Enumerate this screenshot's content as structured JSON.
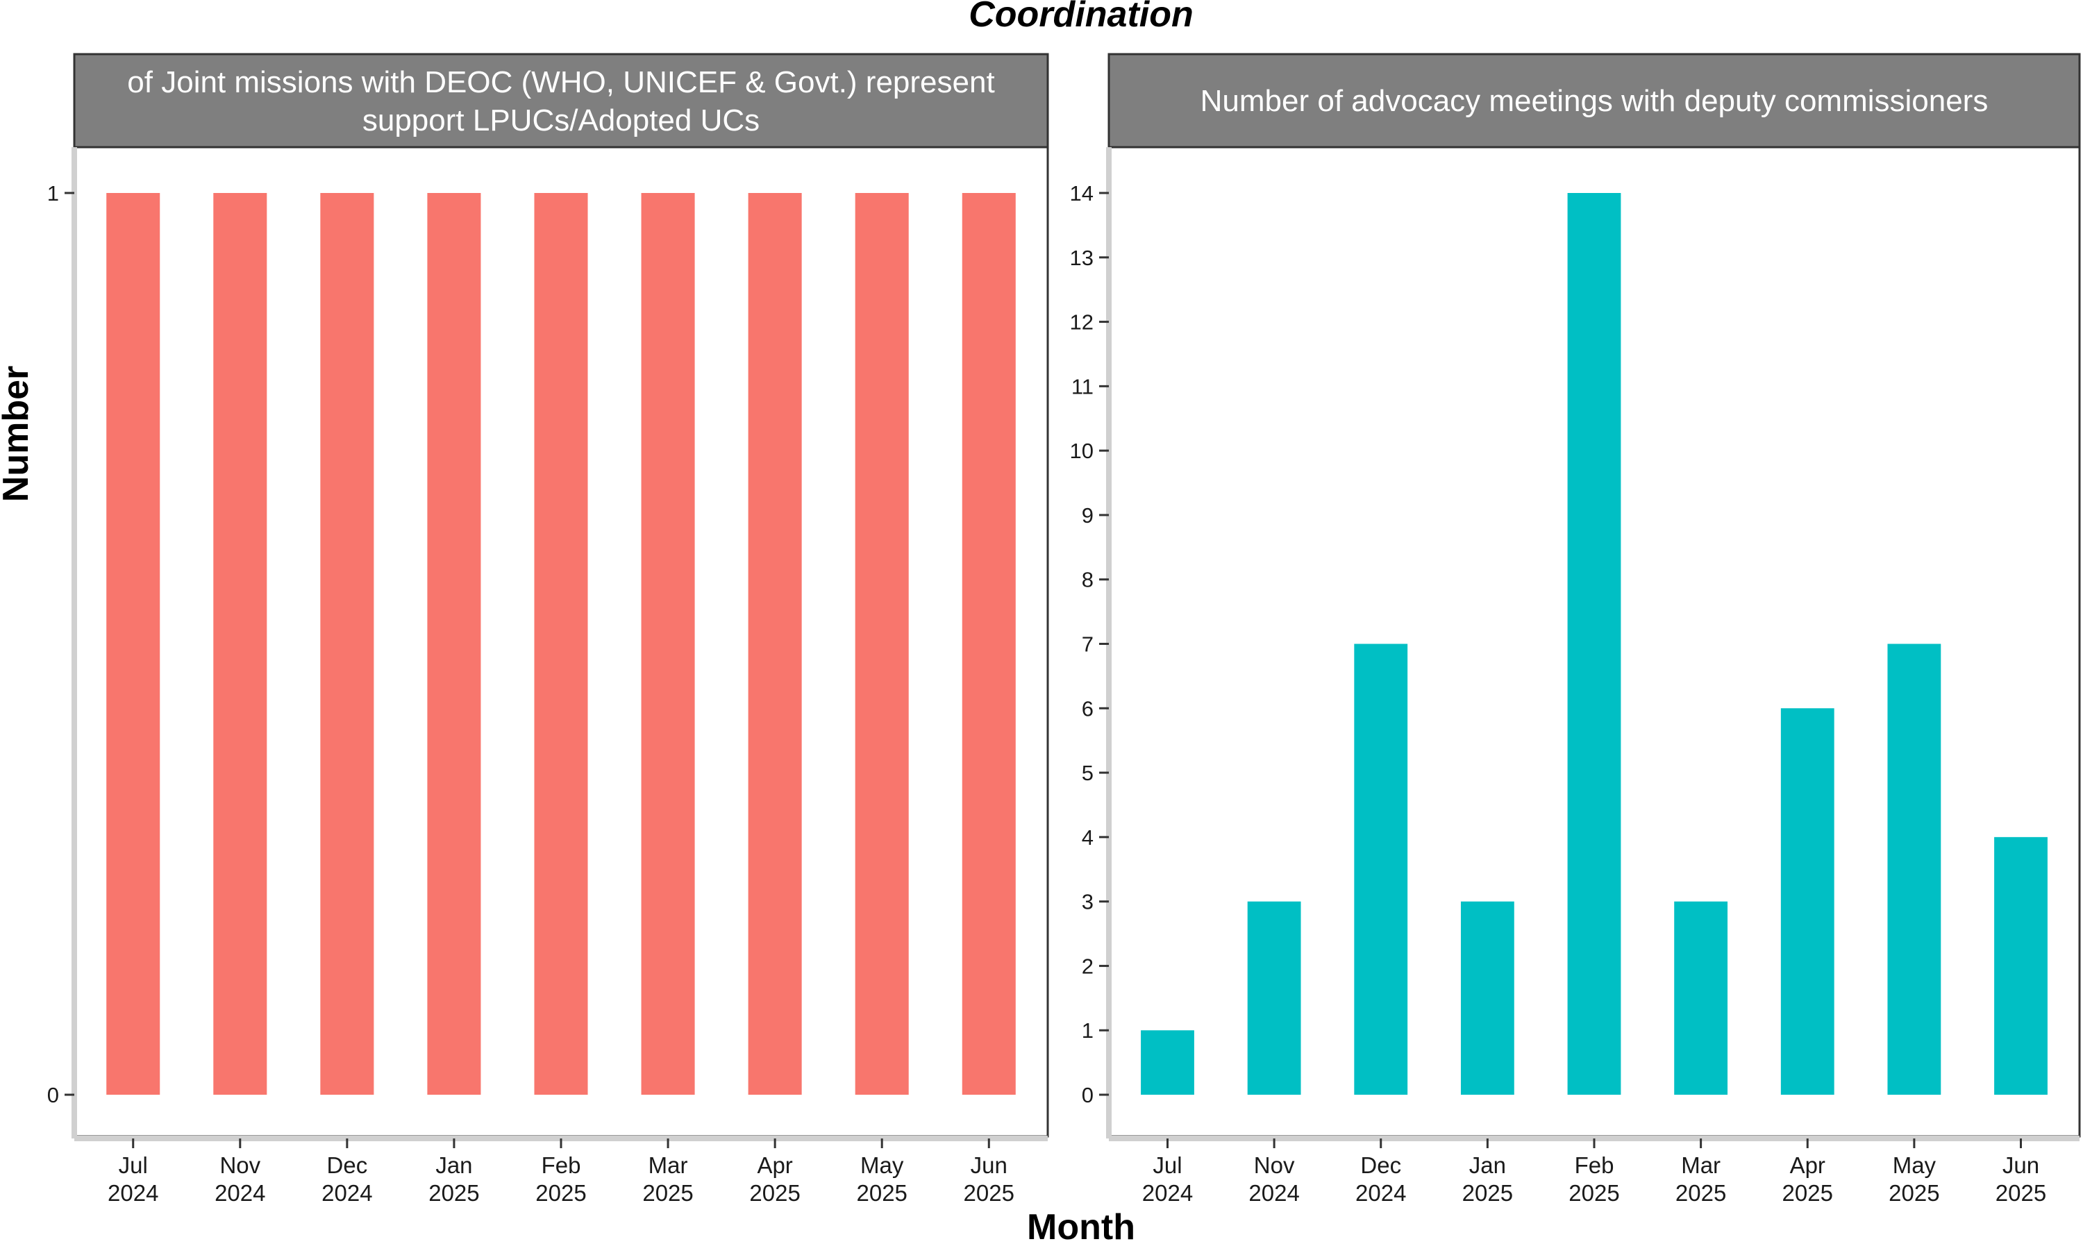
{
  "chart_data": {
    "title": "Coordination",
    "xlabel": "Month",
    "ylabel": "Number",
    "type": "bar",
    "categories": [
      [
        "Jul",
        "2024"
      ],
      [
        "Nov",
        "2024"
      ],
      [
        "Dec",
        "2024"
      ],
      [
        "Jan",
        "2025"
      ],
      [
        "Feb",
        "2025"
      ],
      [
        "Mar",
        "2025"
      ],
      [
        "Apr",
        "2025"
      ],
      [
        "May",
        "2025"
      ],
      [
        "Jun",
        "2025"
      ]
    ],
    "panels": [
      {
        "strip_lines": [
          "of Joint missions with DEOC (WHO, UNICEF & Govt.) represent",
          "support LPUCs/Adopted UCs"
        ],
        "values": [
          1,
          1,
          1,
          1,
          1,
          1,
          1,
          1,
          1
        ],
        "ylim": [
          0,
          1
        ],
        "yticks": [
          0,
          1
        ],
        "color": "#F8766D"
      },
      {
        "strip_lines": [
          "Number of advocacy meetings with deputy commissioners"
        ],
        "values": [
          1,
          3,
          7,
          3,
          14,
          3,
          6,
          7,
          4
        ],
        "ylim": [
          0,
          14
        ],
        "yticks": [
          0,
          1,
          2,
          3,
          4,
          5,
          6,
          7,
          8,
          9,
          10,
          11,
          12,
          13,
          14
        ],
        "color": "#00BFC4"
      }
    ]
  }
}
